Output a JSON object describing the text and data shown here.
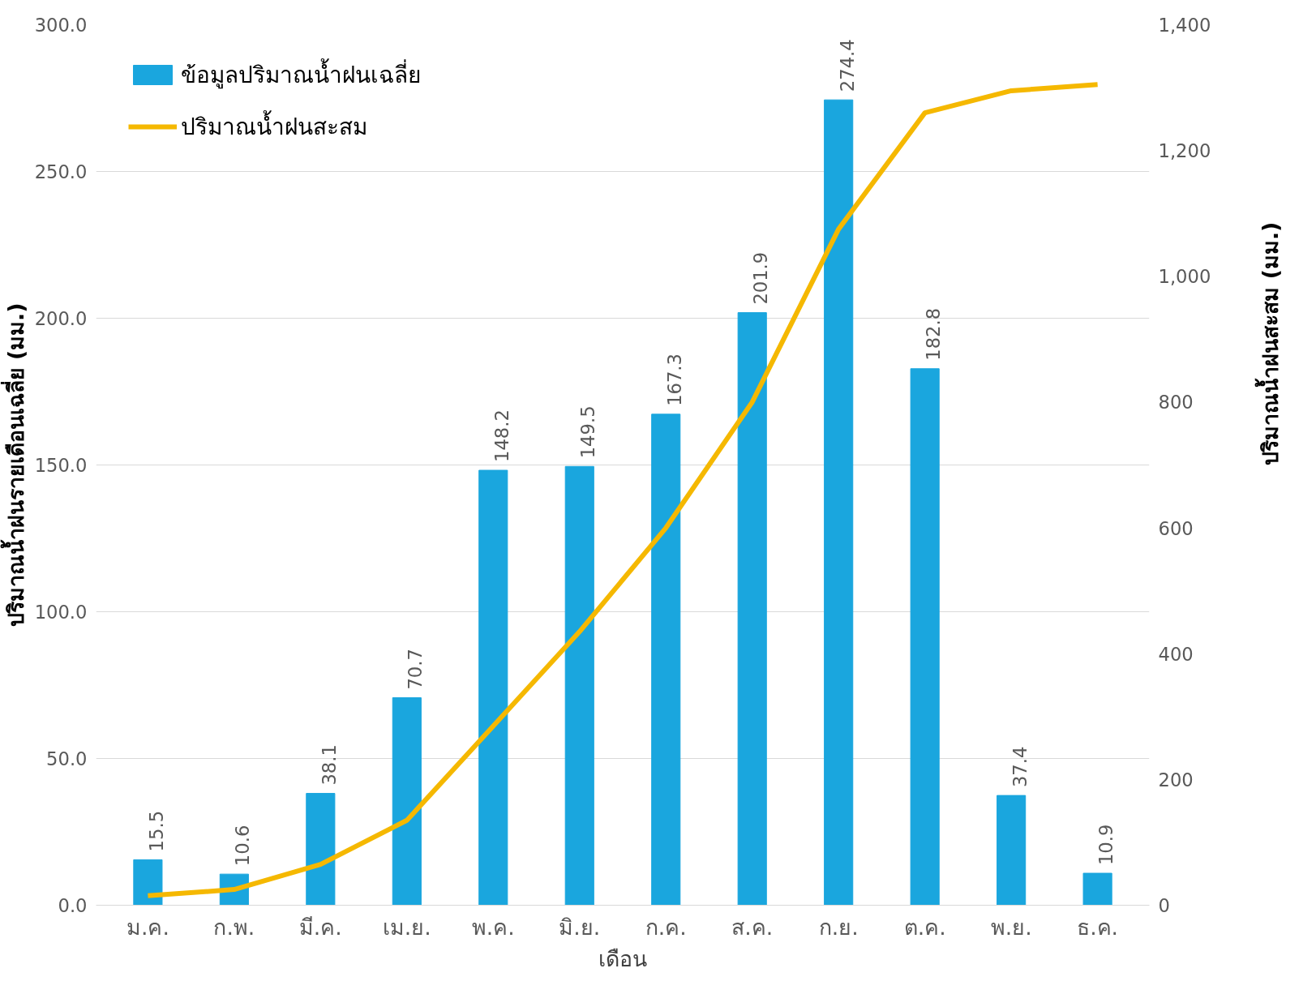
{
  "chart_data": {
    "type": "bar",
    "xlabel": "เดือน",
    "ylabel": "ปริมาณน้ำฝนรายเดือนเฉลี่ย (มม.)",
    "y2label": "ปริมาณน้ำฝนสะสม (มม.)",
    "categories": [
      "ม.ค.",
      "ก.พ.",
      "มี.ค.",
      "เม.ย.",
      "พ.ค.",
      "มิ.ย.",
      "ก.ค.",
      "ส.ค.",
      "ก.ย.",
      "ต.ค.",
      "พ.ย.",
      "ธ.ค."
    ],
    "series": [
      {
        "name": "ข้อมูลปริมาณน้ำฝนเฉลี่ย",
        "color": "#1aa6de",
        "values": [
          15.5,
          10.6,
          38.1,
          70.7,
          148.2,
          149.5,
          167.3,
          201.9,
          274.4,
          182.8,
          37.4,
          10.9
        ],
        "data_labels": true
      },
      {
        "name": "ปริมาณน้ำฝนสะสม",
        "type": "line",
        "axis": "y2",
        "color": "#f5b800",
        "values": [
          15,
          25,
          65,
          135,
          285,
          435,
          600,
          800,
          1075,
          1260,
          1295,
          1305
        ]
      }
    ],
    "ylim": [
      0,
      300
    ],
    "yticks": [
      {
        "value": 0,
        "label": "0.0"
      },
      {
        "value": 50,
        "label": "50.0"
      },
      {
        "value": 100,
        "label": "100.0"
      },
      {
        "value": 150,
        "label": "150.0"
      },
      {
        "value": 200,
        "label": "200.0"
      },
      {
        "value": 250,
        "label": "250.0"
      },
      {
        "value": 300,
        "label": "300.0"
      }
    ],
    "y2lim": [
      0,
      1400
    ],
    "y2ticks": [
      0,
      200,
      400,
      600,
      800,
      {
        "value": 1000,
        "label": "1,000"
      },
      {
        "value": 1200,
        "label": "1,200"
      },
      {
        "value": 1400,
        "label": "1,400"
      }
    ],
    "grid": "y",
    "legend": "top left",
    "marker": "none",
    "line_style": "solid"
  }
}
